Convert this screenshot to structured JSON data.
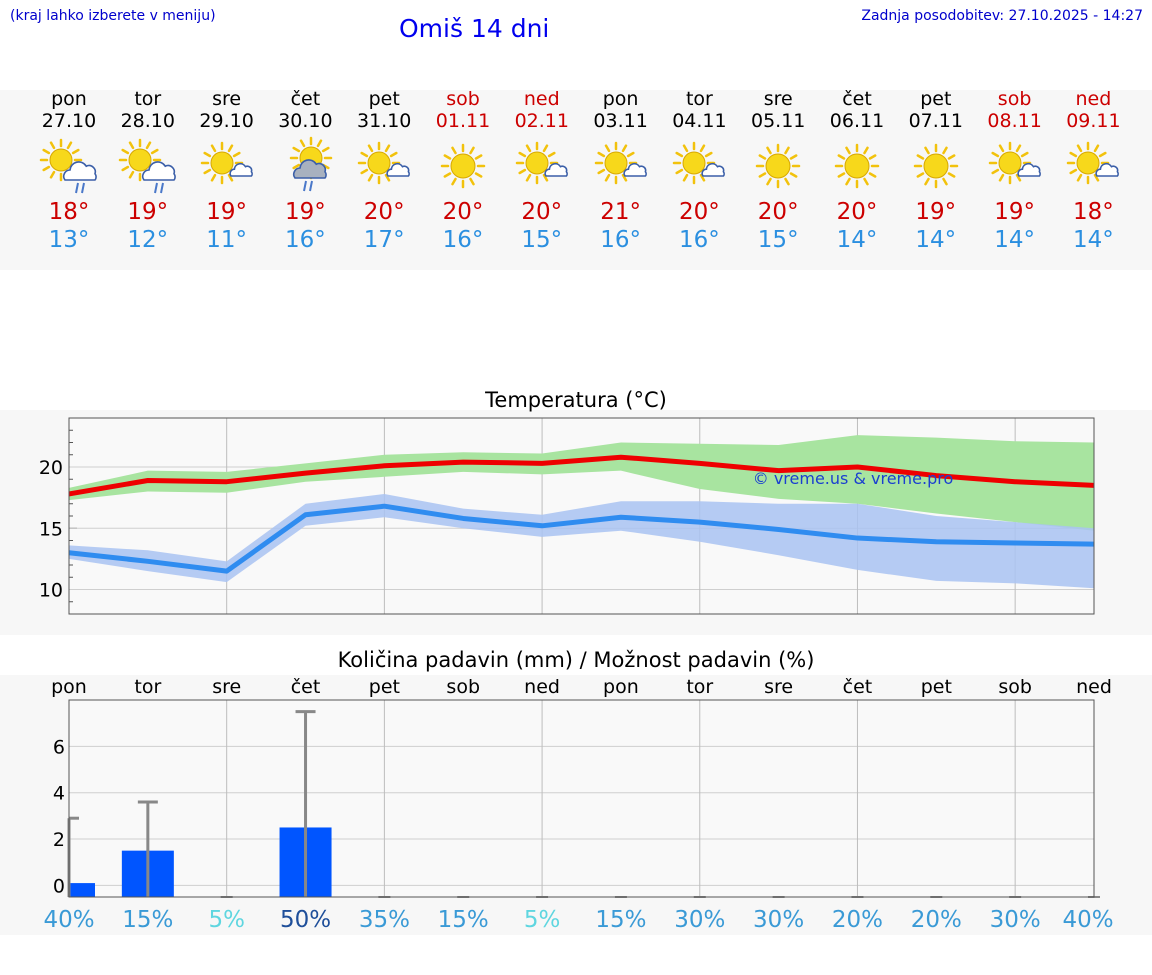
{
  "header": {
    "location_hint": "(kraj lahko izberete v meniju)",
    "title": "Omiš 14 dni",
    "updated": "Zadnja posodobitev: 27.10.2025 - 14:27"
  },
  "forecast": [
    {
      "day": "pon",
      "date": "27.10",
      "weekend": false,
      "icon": "sun-cloud-rain-icon",
      "tmax": "18°",
      "tmin": "13°"
    },
    {
      "day": "tor",
      "date": "28.10",
      "weekend": false,
      "icon": "sun-cloud-rain-icon",
      "tmax": "19°",
      "tmin": "12°"
    },
    {
      "day": "sre",
      "date": "29.10",
      "weekend": false,
      "icon": "sun-small-cloud-icon",
      "tmax": "19°",
      "tmin": "11°"
    },
    {
      "day": "čet",
      "date": "30.10",
      "weekend": false,
      "icon": "sun-dark-cloud-rain-icon",
      "tmax": "19°",
      "tmin": "16°"
    },
    {
      "day": "pet",
      "date": "31.10",
      "weekend": false,
      "icon": "sun-small-cloud-icon",
      "tmax": "20°",
      "tmin": "17°"
    },
    {
      "day": "sob",
      "date": "01.11",
      "weekend": true,
      "icon": "sun-icon",
      "tmax": "20°",
      "tmin": "16°"
    },
    {
      "day": "ned",
      "date": "02.11",
      "weekend": true,
      "icon": "sun-small-cloud-icon",
      "tmax": "20°",
      "tmin": "15°"
    },
    {
      "day": "pon",
      "date": "03.11",
      "weekend": false,
      "icon": "sun-small-cloud-icon",
      "tmax": "21°",
      "tmin": "16°"
    },
    {
      "day": "tor",
      "date": "04.11",
      "weekend": false,
      "icon": "sun-small-cloud-icon",
      "tmax": "20°",
      "tmin": "16°"
    },
    {
      "day": "sre",
      "date": "05.11",
      "weekend": false,
      "icon": "sun-icon",
      "tmax": "20°",
      "tmin": "15°"
    },
    {
      "day": "čet",
      "date": "06.11",
      "weekend": false,
      "icon": "sun-icon",
      "tmax": "20°",
      "tmin": "14°"
    },
    {
      "day": "pet",
      "date": "07.11",
      "weekend": false,
      "icon": "sun-icon",
      "tmax": "19°",
      "tmin": "14°"
    },
    {
      "day": "sob",
      "date": "08.11",
      "weekend": true,
      "icon": "sun-small-cloud-icon",
      "tmax": "19°",
      "tmin": "14°"
    },
    {
      "day": "ned",
      "date": "09.11",
      "weekend": true,
      "icon": "sun-small-cloud-icon",
      "tmax": "18°",
      "tmin": "14°"
    }
  ],
  "colors": {
    "max_line": "#ee0000",
    "max_band": "#a8e4a0",
    "min_line": "#2f8cf0",
    "min_band": "#a9c3f2",
    "overlap_band": "#7cc6a0",
    "precip_bar": "#0055ff",
    "whisker": "#888888",
    "weekend_text": "#cc0000"
  },
  "chart_data": [
    {
      "type": "line",
      "title": "Temperatura (°C)",
      "watermark": "© vreme.us & vreme.pro",
      "x": [
        0,
        1,
        2,
        3,
        4,
        5,
        6,
        7,
        8,
        9,
        10,
        11,
        12,
        13
      ],
      "ylim": [
        8,
        24
      ],
      "yticks": [
        10,
        15,
        20
      ],
      "grid": true,
      "series": [
        {
          "values": [
            17.8,
            18.9,
            18.8,
            19.5,
            20.1,
            20.4,
            20.3,
            20.8,
            20.3,
            19.7,
            20.0,
            19.3,
            18.8,
            18.5
          ],
          "band_low": [
            17.3,
            18.0,
            17.9,
            18.8,
            19.2,
            19.6,
            19.4,
            19.7,
            18.2,
            17.4,
            17.0,
            16.2,
            15.5,
            14.8
          ],
          "band_high": [
            18.3,
            19.7,
            19.6,
            20.3,
            21.0,
            21.2,
            21.1,
            22.0,
            21.9,
            21.8,
            22.6,
            22.4,
            22.1,
            22.0
          ]
        },
        {
          "values": [
            13.0,
            12.3,
            11.5,
            16.1,
            16.8,
            15.8,
            15.2,
            15.9,
            15.5,
            14.9,
            14.2,
            13.9,
            13.8,
            13.7
          ],
          "band_low": [
            12.5,
            11.5,
            10.6,
            15.2,
            15.9,
            15.0,
            14.3,
            14.8,
            13.9,
            12.8,
            11.6,
            10.7,
            10.5,
            10.1
          ],
          "band_high": [
            13.6,
            13.2,
            12.3,
            17.0,
            17.8,
            16.6,
            16.1,
            17.2,
            17.2,
            17.0,
            17.0,
            16.0,
            15.5,
            15.0
          ]
        }
      ]
    },
    {
      "type": "bar",
      "title": "Količina padavin (mm) / Možnost padavin (%)",
      "categories": [
        "pon",
        "tor",
        "sre",
        "čet",
        "pet",
        "sob",
        "ned",
        "pon",
        "tor",
        "sre",
        "čet",
        "pet",
        "sob",
        "ned"
      ],
      "values": [
        0.1,
        1.5,
        0,
        2.5,
        0,
        0,
        0,
        0,
        0,
        0,
        0,
        0,
        0,
        0
      ],
      "whisker_high": [
        2.9,
        3.6,
        0,
        7.5,
        0,
        0,
        0,
        0,
        0,
        0,
        0,
        0,
        0,
        0
      ],
      "chance": [
        "40%",
        "15%",
        "5%",
        "50%",
        "35%",
        "15%",
        "5%",
        "15%",
        "30%",
        "30%",
        "20%",
        "20%",
        "30%",
        "40%"
      ],
      "ylim": [
        -0.5,
        8
      ],
      "yticks": [
        0,
        2,
        4,
        6
      ],
      "grid": true
    }
  ]
}
